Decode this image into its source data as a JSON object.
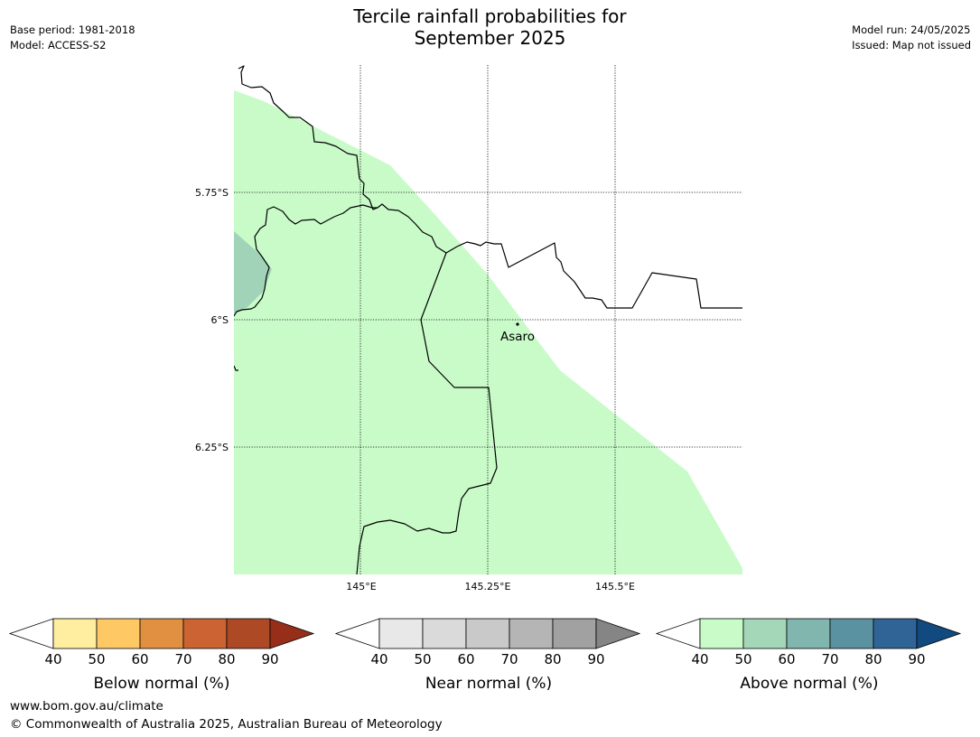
{
  "title": {
    "line1": "Tercile rainfall probabilities for",
    "line2": "September 2025"
  },
  "meta_left": {
    "base_period": "Base period: 1981-2018",
    "model": "Model: ACCESS-S2"
  },
  "meta_right": {
    "model_run": "Model run: 24/05/2025",
    "issued": "Issued: Map not issued"
  },
  "map": {
    "lat_labels": [
      "5.75°S",
      "6°S",
      "6.25°S"
    ],
    "lon_labels": [
      "145°E",
      "145.25°E",
      "145.5°E"
    ],
    "place": {
      "name": "Asaro"
    },
    "colors": {
      "above_40_50": "#c9fbc9",
      "above_50_60": "#a1d3b9",
      "border": "#000000",
      "gridline": "#000000"
    }
  },
  "colorbars": [
    {
      "title": "Below normal (%)",
      "ticks": [
        "40",
        "50",
        "60",
        "70",
        "80",
        "90"
      ],
      "colors": [
        "#ffeda0",
        "#fec965",
        "#e09040",
        "#cb6333",
        "#ad4a25",
        "#962e1a"
      ]
    },
    {
      "title": "Near normal (%)",
      "ticks": [
        "40",
        "50",
        "60",
        "70",
        "80",
        "90"
      ],
      "colors": [
        "#e8e8e8",
        "#dadada",
        "#c9c9c9",
        "#b5b5b5",
        "#a1a1a1",
        "#858585"
      ]
    },
    {
      "title": "Above normal (%)",
      "ticks": [
        "40",
        "50",
        "60",
        "70",
        "80",
        "90"
      ],
      "colors": [
        "#c9fbc9",
        "#a3d7b7",
        "#80b6ad",
        "#5b92a1",
        "#306496",
        "#114a7e"
      ]
    }
  ],
  "footer": {
    "url": "www.bom.gov.au/climate",
    "copyright": "© Commonwealth of Australia 2025, Australian Bureau of Meteorology"
  }
}
